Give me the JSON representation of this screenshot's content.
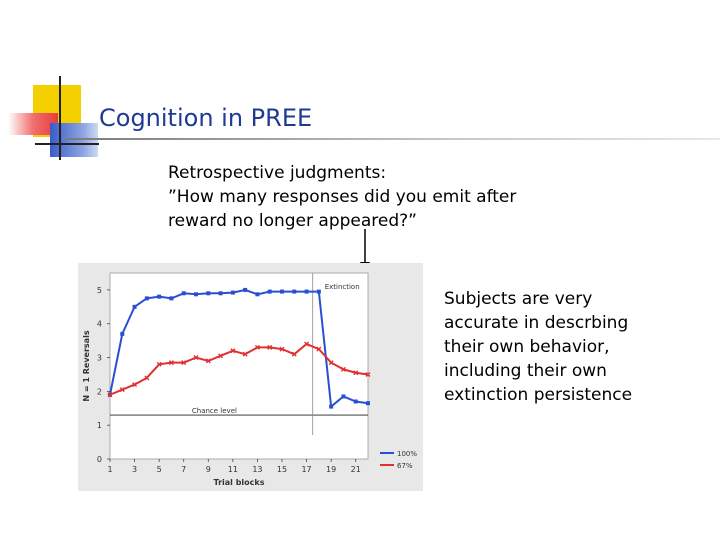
{
  "slide": {
    "title": "Cognition in PREE",
    "question_lines": [
      "Retrospective judgments:",
      "”How many responses did you emit after",
      "reward no longer appeared?”"
    ],
    "side_text_lines": [
      "Subjects are very",
      "accurate in descrbing",
      "their own behavior,",
      "including their own",
      "extinction persistence"
    ],
    "colors": {
      "title": "#1f3a93",
      "deco_yellow": "#f5d000",
      "deco_red": "#e83c3c",
      "deco_blue": "#3a5cc8"
    }
  },
  "chart_data": {
    "type": "line",
    "xlabel": "Trial blocks",
    "ylabel": "N = 1 Reversals",
    "x": [
      1,
      2,
      3,
      4,
      5,
      6,
      7,
      8,
      9,
      10,
      11,
      12,
      13,
      14,
      15,
      16,
      17,
      18,
      19,
      20,
      21,
      22
    ],
    "x_ticks": [
      "1",
      "3",
      "5",
      "7",
      "9",
      "11",
      "13",
      "15",
      "17",
      "19",
      "21"
    ],
    "y_ticks": [
      "0",
      "1",
      "2",
      "3",
      "4",
      "5"
    ],
    "ylim": [
      0,
      5.5
    ],
    "series": [
      {
        "name": "100%",
        "color": "#2a4fd0",
        "values": [
          1.9,
          3.7,
          4.5,
          4.75,
          4.8,
          4.75,
          4.9,
          4.87,
          4.9,
          4.9,
          4.92,
          5.0,
          4.87,
          4.95,
          4.95,
          4.95,
          4.95,
          4.95,
          1.55,
          1.85,
          1.7,
          1.65
        ]
      },
      {
        "name": "67%",
        "color": "#e03030",
        "values": [
          1.9,
          2.05,
          2.2,
          2.4,
          2.8,
          2.85,
          2.85,
          3.0,
          2.9,
          3.05,
          3.2,
          3.1,
          3.3,
          3.3,
          3.25,
          3.1,
          3.4,
          3.25,
          2.85,
          2.65,
          2.55,
          2.5
        ]
      }
    ],
    "annotations": {
      "extinction_label": "Extinction",
      "extinction_at_x": 17.5,
      "chance_label": "Chance level",
      "chance_y": 1.3
    },
    "grid": false,
    "legend": "bottom-right"
  }
}
